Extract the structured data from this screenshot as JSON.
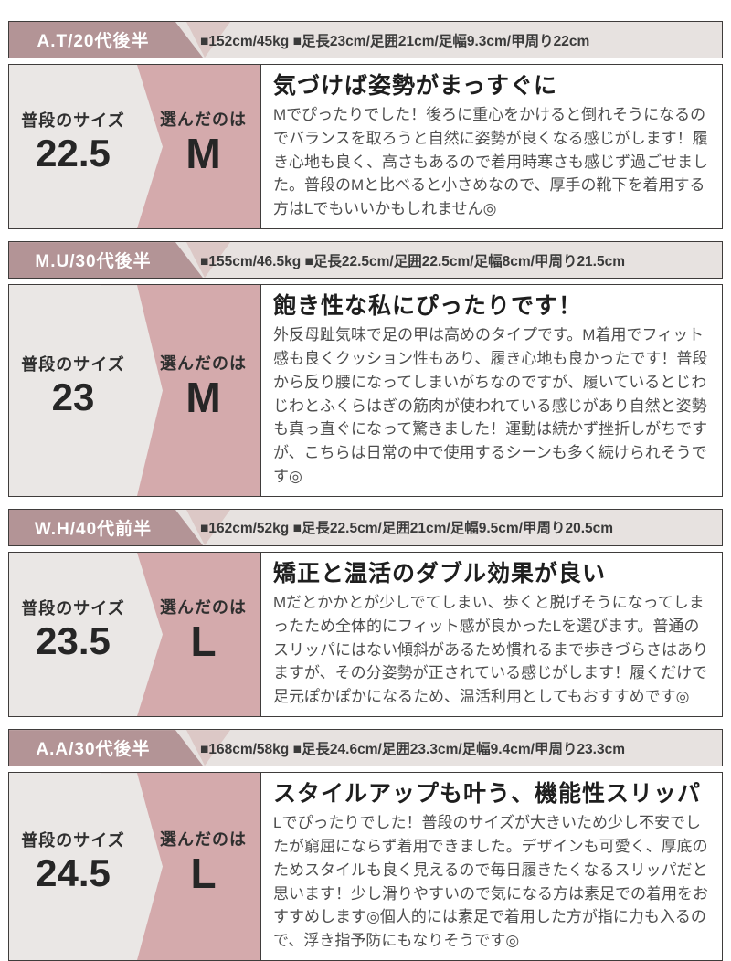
{
  "labels": {
    "usual_size": "普段のサイズ",
    "chosen": "選んだのは"
  },
  "colors": {
    "header_block_mauve": "#b39496",
    "header_stripe_pink": "#dcc8c6",
    "header_bar_bg": "#e7e2e0",
    "panel_pink": "#d4aaac",
    "panel_gray": "#eae7e5",
    "border": "#3f3c3b",
    "reviewer_text": "#ffffff",
    "title_text": "#1e1e1e",
    "body_text": "#4e4e4e"
  },
  "reviews": [
    {
      "reviewer": "A.T/20代後半",
      "stats": "■152cm/45kg ■足長23cm/足囲21cm/足幅9.3cm/甲周り22cm",
      "usual_size": "22.5",
      "chosen_size": "M",
      "title": "気づけば姿勢がまっすぐに",
      "body": "Mでぴったりでした！後ろに重心をかけると倒れそうになるのでバランスを取ろうと自然に姿勢が良くなる感じがします！履き心地も良く、高さもあるので着用時寒さも感じず過ごせました。普段のMと比べると小さめなので、厚手の靴下を着用する方はLでもいいかもしれません◎"
    },
    {
      "reviewer": "M.U/30代後半",
      "stats": "■155cm/46.5kg ■足長22.5cm/足囲22.5cm/足幅8cm/甲周り21.5cm",
      "usual_size": "23",
      "chosen_size": "M",
      "title": "飽き性な私にぴったりです！",
      "body": "外反母趾気味で足の甲は高めのタイプです。M着用でフィット感も良くクッション性もあり、履き心地も良かったです！普段から反り腰になってしまいがちなのですが、履いているとじわじわとふくらはぎの筋肉が使われている感じがあり自然と姿勢も真っ直ぐになって驚きました！運動は続かず挫折しがちですが、こちらは日常の中で使用するシーンも多く続けられそうです◎"
    },
    {
      "reviewer": "W.H/40代前半",
      "stats": "■162cm/52kg ■足長22.5cm/足囲21cm/足幅9.5cm/甲周り20.5cm",
      "usual_size": "23.5",
      "chosen_size": "L",
      "title": "矯正と温活のダブル効果が良い",
      "body": "Mだとかかとが少しでてしまい、歩くと脱げそうになってしまったため全体的にフィット感が良かったLを選びます。普通のスリッパにはない傾斜があるため慣れるまで歩きづらさはありますが、その分姿勢が正されている感じがします！履くだけで足元ぽかぽかになるため、温活利用としてもおすすめです◎"
    },
    {
      "reviewer": "A.A/30代後半",
      "stats": "■168cm/58kg ■足長24.6cm/足囲23.3cm/足幅9.4cm/甲周り23.3cm",
      "usual_size": "24.5",
      "chosen_size": "L",
      "title": "スタイルアップも叶う、機能性スリッパ",
      "body": "Lでぴったりでした！普段のサイズが大きいため少し不安でしたが窮屈にならず着用できました。デザインも可愛く、厚底のためスタイルも良く見えるので毎日履きたくなるスリッパだと思います！少し滑りやすいので気になる方は素足での着用をおすすめします◎個人的には素足で着用した方が指に力も入るので、浮き指予防にもなりそうです◎"
    }
  ]
}
